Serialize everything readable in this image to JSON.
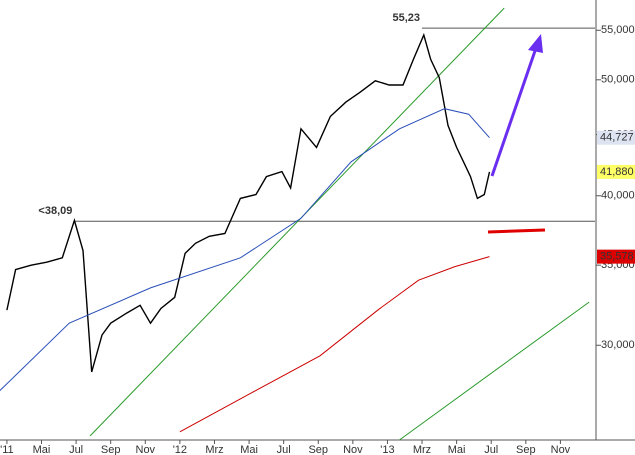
{
  "chart_data": {
    "type": "line",
    "log_scale": true,
    "xlim": [
      1.6,
      36
    ],
    "ylim": [
      25000,
      58300
    ],
    "xticks": [
      {
        "value": 2,
        "label": "'11"
      },
      {
        "value": 4,
        "label": "Mai"
      },
      {
        "value": 6,
        "label": "Jul"
      },
      {
        "value": 8,
        "label": "Sep"
      },
      {
        "value": 10,
        "label": "Nov"
      },
      {
        "value": 12,
        "label": "'12"
      },
      {
        "value": 14,
        "label": "Mrz"
      },
      {
        "value": 16,
        "label": "Mai"
      },
      {
        "value": 18,
        "label": "Jul"
      },
      {
        "value": 20,
        "label": "Sep"
      },
      {
        "value": 22,
        "label": "Nov"
      },
      {
        "value": 24,
        "label": "'13"
      },
      {
        "value": 26,
        "label": "Mrz"
      },
      {
        "value": 28,
        "label": "Mai"
      },
      {
        "value": 30,
        "label": "Jul"
      },
      {
        "value": 32,
        "label": "Sep"
      },
      {
        "value": 34,
        "label": "Nov"
      }
    ],
    "yticks": [
      {
        "value": 30000,
        "label": "30,000"
      },
      {
        "value": 35000,
        "label": "35,000"
      },
      {
        "value": 40000,
        "label": "40,000"
      },
      {
        "value": 45000,
        "label": "45,000"
      },
      {
        "value": 50000,
        "label": "50,000"
      },
      {
        "value": 55000,
        "label": "55,000"
      }
    ],
    "series": [
      {
        "color": "#000000",
        "x": [
          2,
          2.5,
          3.4,
          4.3,
          5.2,
          5.9,
          6.4,
          6.9,
          7.5,
          8.0,
          8.9,
          9.7,
          10.3,
          10.9,
          11.7,
          12.3,
          12.9,
          13.7,
          14.6,
          15.5,
          16.4,
          17.0,
          17.9,
          18.4,
          19.0,
          19.9,
          20.7,
          21.6,
          22.4,
          23.3,
          24.1,
          24.9,
          25.5,
          26.1,
          26.5,
          27.0,
          27.5,
          28.0,
          28.4,
          28.8,
          29.2,
          29.6,
          29.9
        ],
        "values": [
          32100,
          34700,
          35000,
          35200,
          35500,
          38150,
          36000,
          28500,
          30600,
          31300,
          31900,
          32400,
          31300,
          32200,
          32900,
          35800,
          36500,
          37000,
          37200,
          39800,
          40100,
          41500,
          41900,
          40600,
          45500,
          43900,
          46600,
          47900,
          48800,
          49900,
          49500,
          49500,
          52000,
          54500,
          52000,
          50200,
          45800,
          43900,
          42700,
          41500,
          39800,
          40100,
          41880
        ],
        "label": "41,880",
        "label_bg": "#ffff66",
        "label_color": "#000000"
      },
      {
        "color": "#2a4fb8",
        "x": [
          1.6,
          5.6,
          10.3,
          15.5,
          19.0,
          21.9,
          24.7,
          27.3,
          28.7,
          29.9
        ],
        "values": [
          27500,
          31300,
          33500,
          35500,
          38300,
          42700,
          45500,
          47300,
          46800,
          44727
        ],
        "label": "44,727",
        "label_bg": "#dde3f0",
        "label_color": "#1f3fa8"
      },
      {
        "color": "#cc0000",
        "x": [
          12,
          16.6,
          20.1,
          23.5,
          25.8,
          27.9,
          29.9
        ],
        "values": [
          25400,
          27600,
          29400,
          32150,
          34000,
          34900,
          35578
        ],
        "label": "35,578",
        "label_bg": "#dd0000",
        "label_color": "#ffffff"
      }
    ],
    "trendlines": [
      {
        "color": "#2a9a2a",
        "x": [
          6.81,
          30.75
        ],
        "values": [
          25200,
          57400
        ]
      },
      {
        "color": "#2a9a2a",
        "x": [
          24.69,
          35.66
        ],
        "values": [
          25000,
          32600
        ]
      }
    ],
    "levels": [
      {
        "value": 55230,
        "label": "55,23",
        "from": 26.0,
        "color": "#999999"
      },
      {
        "value": 38090,
        "label": "<38,09",
        "from": 5.9,
        "color": "#cc0000"
      }
    ]
  }
}
